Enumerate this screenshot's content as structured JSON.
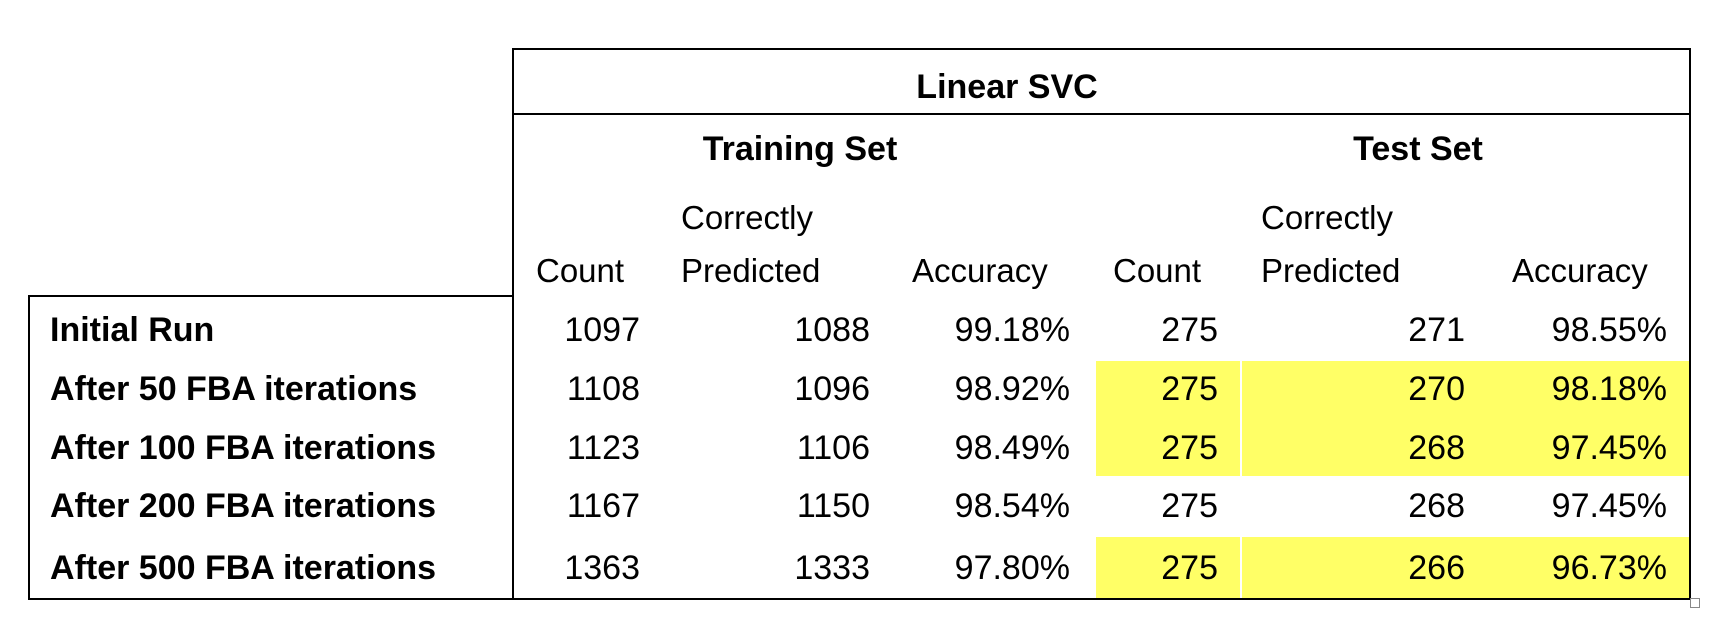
{
  "table": {
    "title": "Linear SVC",
    "groups": [
      "Training Set",
      "Test Set"
    ],
    "headers": {
      "train_count": "Count",
      "train_correct_line1": "Correctly",
      "train_correct_line2": "Predicted",
      "train_accuracy": "Accuracy",
      "test_count": "Count",
      "test_correct_line1": "Correctly",
      "test_correct_line2": "Predicted",
      "test_accuracy": "Accuracy"
    },
    "rows": [
      {
        "label": "Initial Run",
        "values": [
          "1097",
          "1088",
          "99.18%",
          "275",
          "271",
          "98.55%"
        ],
        "highlight_test": false
      },
      {
        "label": "After 50 FBA iterations",
        "values": [
          "1108",
          "1096",
          "98.92%",
          "275",
          "270",
          "98.18%"
        ],
        "highlight_test": true
      },
      {
        "label": "After 100 FBA iterations",
        "values": [
          "1123",
          "1106",
          "98.49%",
          "275",
          "268",
          "97.45%"
        ],
        "highlight_test": true
      },
      {
        "label": "After 200 FBA iterations",
        "values": [
          "1167",
          "1150",
          "98.54%",
          "275",
          "268",
          "97.45%"
        ],
        "highlight_test": false
      },
      {
        "label": "After 500 FBA iterations",
        "values": [
          "1363",
          "1333",
          "97.80%",
          "275",
          "266",
          "96.73%"
        ],
        "highlight_test": true
      }
    ],
    "highlight_color": "#ffff66"
  }
}
